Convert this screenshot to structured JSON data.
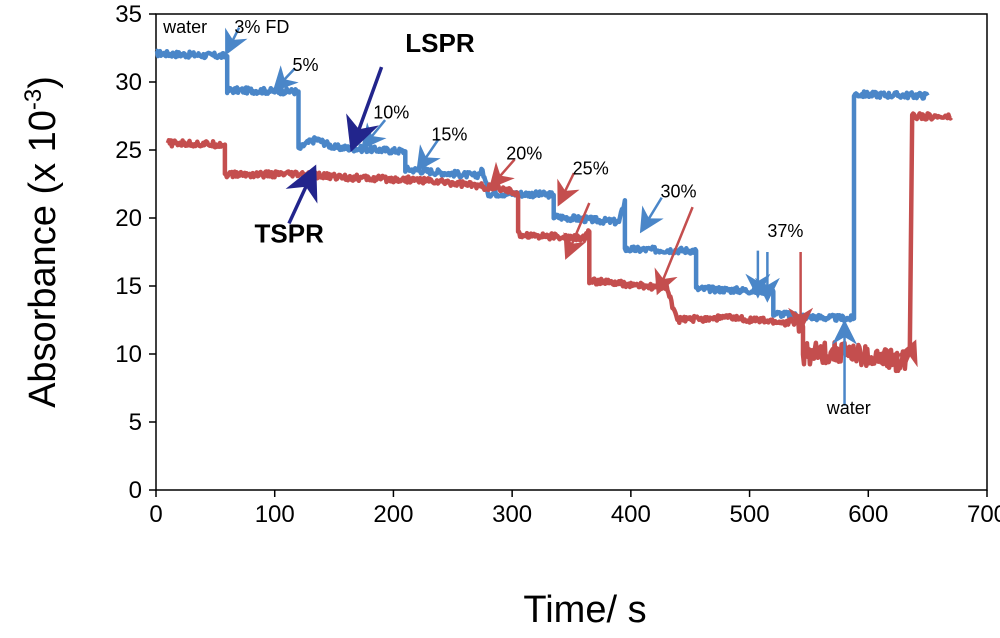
{
  "chart_data": {
    "type": "line",
    "title": "",
    "xlabel": "Time/ s",
    "ylabel": "Absorbance (x 10",
    "ylabel_exponent": "-3",
    "ylabel_close": ")",
    "xlim": [
      0,
      700
    ],
    "ylim": [
      0,
      35
    ],
    "xticks": [
      0,
      100,
      200,
      300,
      400,
      500,
      600,
      700
    ],
    "yticks": [
      0,
      5,
      10,
      15,
      20,
      25,
      30,
      35
    ],
    "grid": false,
    "colors": {
      "LSPR": "#4a86c8",
      "TSPR": "#c44e4e",
      "pointer": "#22258c"
    },
    "series": [
      {
        "name": "LSPR",
        "color": "#4a86c8",
        "x": [
          0,
          60,
          60,
          120,
          120,
          125,
          135,
          150,
          210,
          210,
          270,
          275,
          280,
          300,
          335,
          335,
          390,
          395,
          395,
          455,
          455,
          520,
          520,
          555,
          588,
          588,
          650
        ],
        "y": [
          32.1,
          31.9,
          29.4,
          29.3,
          25.0,
          25.4,
          25.8,
          25.2,
          24.9,
          23.6,
          23.1,
          23.5,
          21.8,
          21.8,
          21.7,
          20.1,
          19.7,
          21.3,
          17.7,
          17.6,
          14.8,
          14.6,
          13.0,
          12.7,
          12.6,
          29.1,
          29.0
        ]
      },
      {
        "name": "TSPR",
        "color": "#c44e4e",
        "x": [
          10,
          58,
          58,
          120,
          180,
          220,
          260,
          300,
          305,
          305,
          360,
          365,
          365,
          420,
          430,
          435,
          440,
          480,
          530,
          540,
          545,
          545,
          580,
          600,
          630,
          635,
          637,
          640,
          670
        ],
        "y": [
          25.5,
          25.4,
          23.2,
          23.2,
          22.9,
          22.8,
          22.5,
          22.0,
          21.6,
          18.8,
          18.5,
          19.0,
          15.4,
          14.9,
          15.0,
          13.5,
          12.5,
          12.7,
          12.3,
          12.4,
          12.0,
          10.0,
          10.2,
          9.7,
          9.5,
          10.3,
          27.7,
          27.5,
          27.4
        ]
      }
    ],
    "annotations": [
      {
        "text": "water",
        "x": 6,
        "y": 33.6,
        "color": "#4a86c8"
      },
      {
        "text": "3% FD",
        "x": 66,
        "y": 33.6,
        "color": "#4a86c8",
        "arrow_from": [
          70,
          34.0
        ],
        "arrow_to": [
          62,
          32.6
        ]
      },
      {
        "text": "5%",
        "x": 115,
        "y": 30.8,
        "color": "#4a86c8",
        "arrow_from": [
          117,
          31.0
        ],
        "arrow_to": [
          104,
          29.8
        ]
      },
      {
        "text": "10%",
        "x": 183,
        "y": 27.3,
        "color": "#4a86c8",
        "arrow_from": [
          193,
          27.2
        ],
        "arrow_to": [
          178,
          25.6
        ]
      },
      {
        "text": "15%",
        "x": 232,
        "y": 25.7,
        "color": "#4a86c8",
        "arrow_from": [
          238,
          25.8
        ],
        "arrow_to": [
          224,
          24.0
        ]
      },
      {
        "text": "20%",
        "x": 295,
        "y": 24.3,
        "color": "#c44e4e",
        "arrow_from": [
          302,
          24.3
        ],
        "arrow_to": [
          286,
          22.7
        ]
      },
      {
        "text": "25%",
        "x": 351,
        "y": 23.2,
        "color": "#c44e4e",
        "arrow_from": [
          352,
          23.3
        ],
        "arrow_to": [
          342,
          21.5
        ]
      },
      {
        "text": "30%",
        "x": 425,
        "y": 21.5,
        "color": "#4a86c8",
        "arrow_from": [
          426,
          21.5
        ],
        "arrow_to": [
          412,
          19.5
        ]
      },
      {
        "text": "37%",
        "x": 515,
        "y": 18.6,
        "color": "#4a86c8",
        "arrow_from": [
          515,
          17.5
        ],
        "arrow_to": [
          515,
          14.5
        ]
      },
      {
        "text": "water",
        "x": 565,
        "y": 5.6,
        "color": "#4a86c8",
        "arrow_from": [
          580,
          6.2
        ],
        "arrow_to": [
          580,
          11.8
        ]
      }
    ],
    "series_labels": [
      {
        "text": "LSPR",
        "x": 210,
        "y": 32.2,
        "color": "#000000",
        "arrow_from": [
          190,
          31.1
        ],
        "arrow_to": [
          168,
          25.8
        ]
      },
      {
        "text": "TSPR",
        "x": 83,
        "y": 18.2,
        "color": "#000000",
        "arrow_from": [
          112,
          19.6
        ],
        "arrow_to": [
          130,
          23.0
        ]
      }
    ],
    "colored_pointers": [
      {
        "color": "#c44e4e",
        "from": [
          365,
          21.1
        ],
        "to": [
          348,
          17.6
        ]
      },
      {
        "color": "#c44e4e",
        "from": [
          452,
          20.8
        ],
        "to": [
          425,
          15.0
        ]
      },
      {
        "color": "#4a86c8",
        "from": [
          507,
          17.6
        ],
        "to": [
          507,
          14.8
        ]
      },
      {
        "color": "#c44e4e",
        "from": [
          543,
          17.5
        ],
        "to": [
          543,
          12.3
        ]
      },
      {
        "color": "#c44e4e",
        "from": [
          630,
          9.0
        ],
        "to": [
          637,
          10.4
        ]
      }
    ]
  }
}
